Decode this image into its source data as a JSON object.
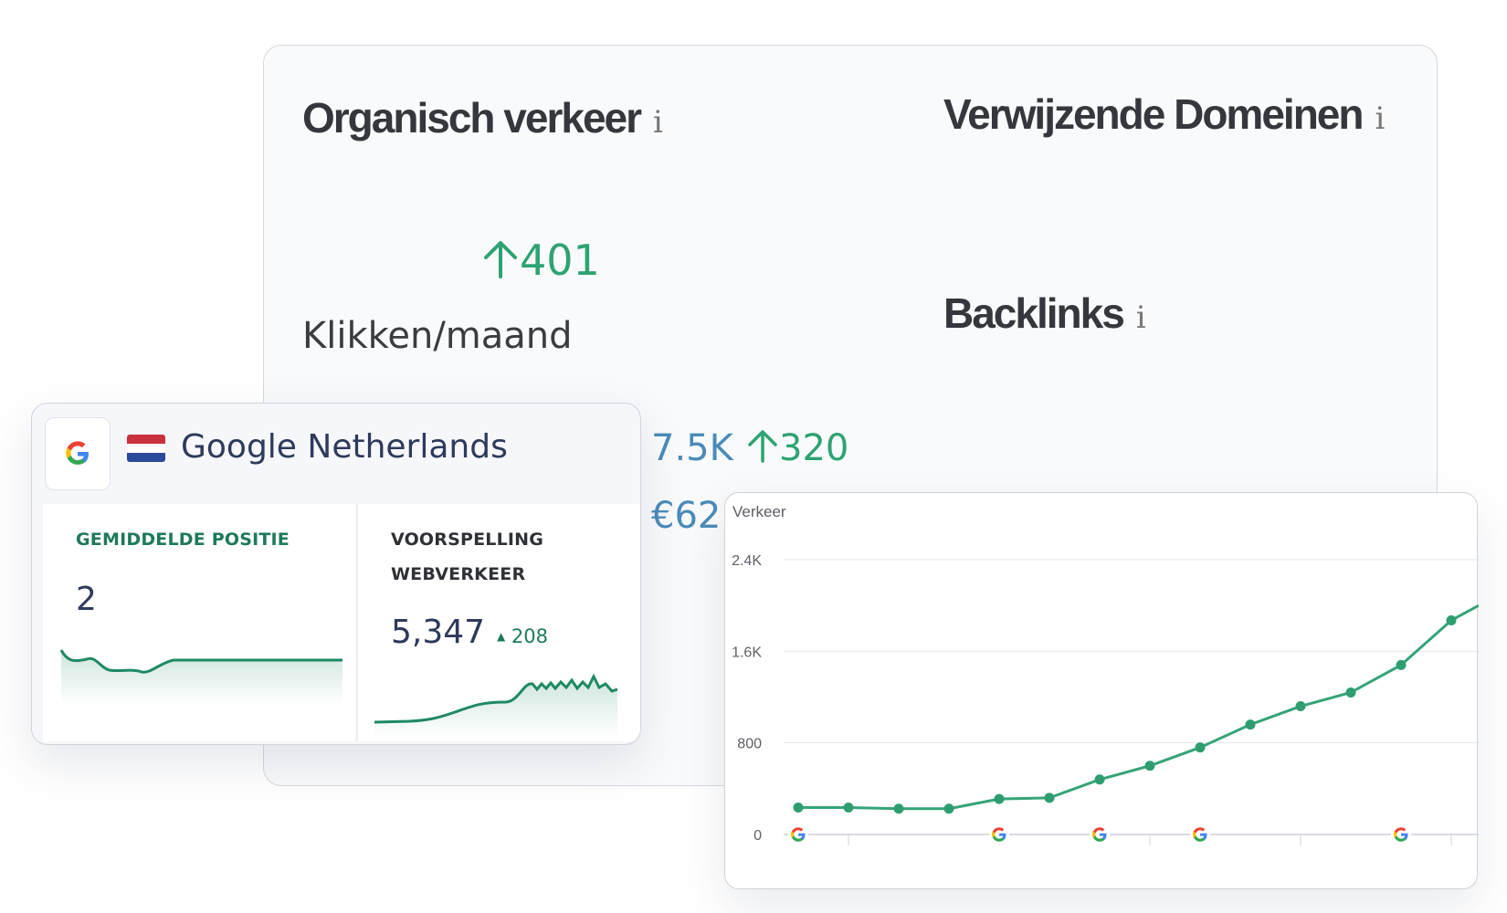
{
  "organic": {
    "title": "Organisch verkeer",
    "info": "i",
    "delta": "401",
    "unit_label": "Klikken/maand",
    "traffic_value": "7.5K",
    "traffic_delta": "320",
    "cost_value": "€62"
  },
  "domains": {
    "title": "Verwijzende Domeinen",
    "info": "i"
  },
  "backlinks": {
    "title": "Backlinks",
    "info": "i"
  },
  "google_card": {
    "title": "Google Netherlands",
    "avg_position": {
      "label": "GEMIDDELDE POSITIE",
      "value": "2"
    },
    "forecast": {
      "label_line1": "VOORSPELLING",
      "label_line2": "WEBVERKEER",
      "value": "5,347",
      "delta": "208"
    }
  },
  "colors": {
    "green": "#2ea372",
    "blue": "#4a8bb9",
    "navy": "#2e3a5c",
    "teal": "#1e7a5a"
  },
  "chart_data": {
    "type": "line",
    "title": "",
    "ylabel": "Verkeer",
    "y_ticks": [
      "2.4K",
      "1.6K",
      "800",
      "0"
    ],
    "ylim": [
      0,
      2400
    ],
    "x": [
      1,
      2,
      3,
      4,
      5,
      6,
      7,
      8,
      9,
      10,
      11,
      12,
      13,
      14
    ],
    "series": [
      {
        "values": [
          235,
          235,
          225,
          225,
          310,
          320,
          480,
          600,
          760,
          960,
          1120,
          1240,
          1480,
          1870
        ]
      }
    ],
    "end_value": 2000,
    "google_markers_at": [
      1,
      5,
      7,
      9,
      13
    ]
  }
}
